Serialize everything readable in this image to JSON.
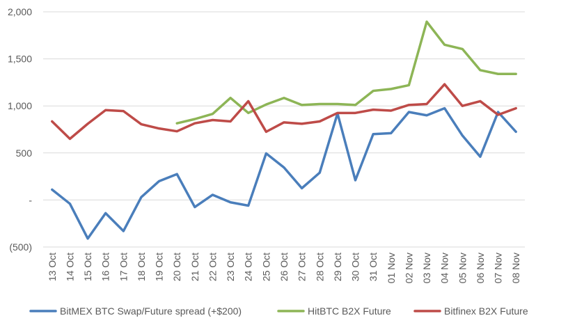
{
  "chart_data": {
    "type": "line",
    "title": "",
    "xlabel": "",
    "ylabel": "",
    "ylim": [
      -500,
      2000
    ],
    "yticks": [
      2000,
      1500,
      1000,
      500,
      0,
      -500
    ],
    "ytick_labels": [
      "2,000",
      "1,500",
      "1,000",
      "500",
      "-",
      "(500)"
    ],
    "grid": true,
    "legend_position": "bottom",
    "categories": [
      "13 Oct",
      "14 Oct",
      "15 Oct",
      "16 Oct",
      "17 Oct",
      "18 Oct",
      "19 Oct",
      "20 Oct",
      "21 Oct",
      "22 Oct",
      "23 Oct",
      "24 Oct",
      "25 Oct",
      "26 Oct",
      "27 Oct",
      "28 Oct",
      "29 Oct",
      "30 Oct",
      "31 Oct",
      "01 Nov",
      "02 Nov",
      "03 Nov",
      "04 Nov",
      "05 Nov",
      "06 Nov",
      "07 Nov",
      "08 Nov"
    ],
    "series": [
      {
        "name": "BitMEX BTC Swap/Future spread (+$200)",
        "color": "#4a7ebb",
        "values": [
          110,
          -40,
          -410,
          -140,
          -330,
          30,
          200,
          275,
          -75,
          55,
          -25,
          -60,
          495,
          345,
          125,
          290,
          920,
          210,
          700,
          710,
          935,
          900,
          975,
          685,
          460,
          935,
          725
        ]
      },
      {
        "name": "HitBTC B2X Future",
        "color": "#8db556",
        "values": [
          null,
          null,
          null,
          null,
          null,
          null,
          null,
          815,
          860,
          915,
          1085,
          925,
          1015,
          1085,
          1010,
          1020,
          1020,
          1010,
          1160,
          1180,
          1220,
          1895,
          1650,
          1605,
          1380,
          1340,
          1340
        ]
      },
      {
        "name": "Bitfinex B2X Future",
        "color": "#be4b48",
        "values": [
          835,
          650,
          810,
          955,
          945,
          805,
          760,
          730,
          815,
          850,
          835,
          1050,
          725,
          825,
          810,
          835,
          925,
          925,
          960,
          950,
          1010,
          1020,
          1230,
          1000,
          1050,
          905,
          975
        ]
      }
    ]
  }
}
